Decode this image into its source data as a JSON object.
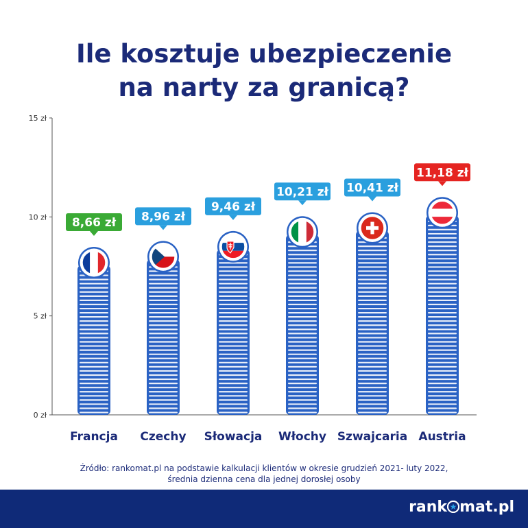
{
  "title": {
    "line1": "Ile kosztuje ubezpieczenie",
    "line2": "na narty za granicą?"
  },
  "chart_data": {
    "type": "bar",
    "categories": [
      "Francja",
      "Czechy",
      "Słowacja",
      "Włochy",
      "Szwajcaria",
      "Austria"
    ],
    "values": [
      8.66,
      8.96,
      9.46,
      10.21,
      10.41,
      11.18
    ],
    "value_labels": [
      "8,66 zł",
      "8,96 zł",
      "9,46 zł",
      "10,21 zł",
      "10,41 zł",
      "11,18 zł"
    ],
    "label_colors": [
      "#3aaa35",
      "#2a9fde",
      "#2a9fde",
      "#2a9fde",
      "#2a9fde",
      "#e52421"
    ],
    "flags": [
      "france-flag-icon",
      "czech-flag-icon",
      "slovakia-flag-icon",
      "italy-flag-icon",
      "switzerland-flag-icon",
      "austria-flag-icon"
    ],
    "yticks": [
      0,
      5,
      10,
      15
    ],
    "ytick_labels": [
      "0 zł",
      "5 zł",
      "10 zł",
      "15 zł"
    ],
    "ylim": [
      0,
      15
    ],
    "bar_style": "stacked coins",
    "coin_color": "#2a62c4"
  },
  "source": {
    "line1": "Źródło: rankomat.pl na podstawie kalkulacji klientów w okresie grudzień 2021- luty 2022,",
    "line2": "średnia dzienna cena dla jednej dorosłej osoby"
  },
  "footer": {
    "logo_part1": "rank",
    "logo_part2": "mat.pl"
  }
}
